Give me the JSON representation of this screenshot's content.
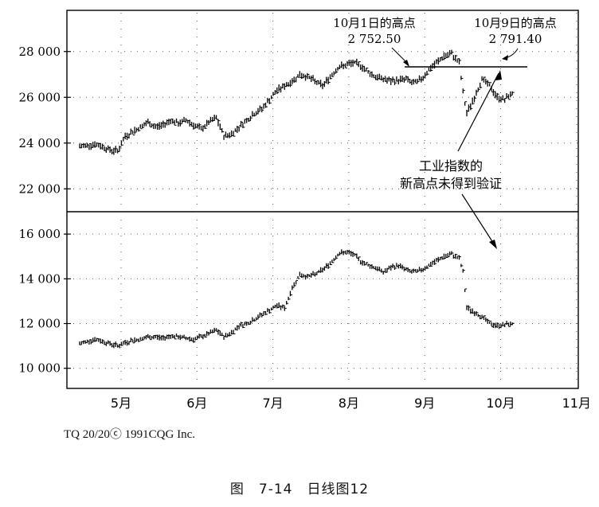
{
  "chart_data": {
    "type": "bar",
    "subtype": "ohlc-daily",
    "x_ticks": [
      "5月",
      "6月",
      "7月",
      "8月",
      "9月",
      "10月",
      "11月"
    ],
    "top_panel": {
      "y_ticks": [
        "28 000",
        "26 000",
        "24 000",
        "22 000"
      ],
      "ylim": [
        21000,
        29800
      ],
      "series": [
        {
          "x": 0.0,
          "y": 23850
        },
        {
          "x": 0.2,
          "y": 23900
        },
        {
          "x": 0.4,
          "y": 23950
        },
        {
          "x": 0.6,
          "y": 23850
        },
        {
          "x": 0.8,
          "y": 23700
        },
        {
          "x": 1.0,
          "y": 23650
        },
        {
          "x": 1.2,
          "y": 24300
        },
        {
          "x": 1.4,
          "y": 24500
        },
        {
          "x": 1.6,
          "y": 24700
        },
        {
          "x": 1.8,
          "y": 24900
        },
        {
          "x": 2.0,
          "y": 24700
        },
        {
          "x": 2.2,
          "y": 24800
        },
        {
          "x": 2.4,
          "y": 25000
        },
        {
          "x": 2.6,
          "y": 24850
        },
        {
          "x": 2.8,
          "y": 25000
        },
        {
          "x": 3.0,
          "y": 24800
        },
        {
          "x": 3.2,
          "y": 24600
        },
        {
          "x": 3.4,
          "y": 24900
        },
        {
          "x": 3.6,
          "y": 25100
        },
        {
          "x": 3.8,
          "y": 24300
        },
        {
          "x": 4.0,
          "y": 24400
        },
        {
          "x": 4.2,
          "y": 24700
        },
        {
          "x": 4.4,
          "y": 25000
        },
        {
          "x": 4.6,
          "y": 25300
        },
        {
          "x": 4.8,
          "y": 25500
        },
        {
          "x": 5.0,
          "y": 25900
        },
        {
          "x": 5.2,
          "y": 26300
        },
        {
          "x": 5.4,
          "y": 26500
        },
        {
          "x": 5.6,
          "y": 26700
        },
        {
          "x": 5.8,
          "y": 27000
        },
        {
          "x": 6.0,
          "y": 26900
        },
        {
          "x": 6.2,
          "y": 26700
        },
        {
          "x": 6.4,
          "y": 26500
        },
        {
          "x": 6.6,
          "y": 26900
        },
        {
          "x": 6.8,
          "y": 27300
        },
        {
          "x": 7.0,
          "y": 27400
        },
        {
          "x": 7.2,
          "y": 27500
        },
        {
          "x": 7.4,
          "y": 27400
        },
        {
          "x": 7.6,
          "y": 27100
        },
        {
          "x": 7.8,
          "y": 26900
        },
        {
          "x": 8.0,
          "y": 26800
        },
        {
          "x": 8.2,
          "y": 26700
        },
        {
          "x": 8.4,
          "y": 26750
        },
        {
          "x": 8.6,
          "y": 26800
        },
        {
          "x": 8.8,
          "y": 26600
        },
        {
          "x": 9.0,
          "y": 26800
        },
        {
          "x": 9.2,
          "y": 27200
        },
        {
          "x": 9.4,
          "y": 27500
        },
        {
          "x": 9.6,
          "y": 27800
        },
        {
          "x": 9.8,
          "y": 27900
        },
        {
          "x": 10.0,
          "y": 27500
        },
        {
          "x": 10.1,
          "y": 26200
        },
        {
          "x": 10.2,
          "y": 25300
        },
        {
          "x": 10.4,
          "y": 26000
        },
        {
          "x": 10.6,
          "y": 26800
        },
        {
          "x": 10.8,
          "y": 26500
        },
        {
          "x": 11.0,
          "y": 26000
        },
        {
          "x": 11.2,
          "y": 25900
        },
        {
          "x": 11.4,
          "y": 26200
        }
      ]
    },
    "bottom_panel": {
      "y_ticks": [
        "16 000",
        "14 000",
        "12 000",
        "10 000"
      ],
      "ylim": [
        9100,
        17000
      ],
      "series": [
        {
          "x": 0.0,
          "y": 11100
        },
        {
          "x": 0.2,
          "y": 11200
        },
        {
          "x": 0.4,
          "y": 11300
        },
        {
          "x": 0.6,
          "y": 11200
        },
        {
          "x": 0.8,
          "y": 11100
        },
        {
          "x": 1.0,
          "y": 11000
        },
        {
          "x": 1.2,
          "y": 11150
        },
        {
          "x": 1.4,
          "y": 11250
        },
        {
          "x": 1.6,
          "y": 11300
        },
        {
          "x": 1.8,
          "y": 11400
        },
        {
          "x": 2.0,
          "y": 11400
        },
        {
          "x": 2.2,
          "y": 11350
        },
        {
          "x": 2.4,
          "y": 11450
        },
        {
          "x": 2.6,
          "y": 11400
        },
        {
          "x": 2.8,
          "y": 11350
        },
        {
          "x": 3.0,
          "y": 11300
        },
        {
          "x": 3.2,
          "y": 11400
        },
        {
          "x": 3.4,
          "y": 11550
        },
        {
          "x": 3.6,
          "y": 11700
        },
        {
          "x": 3.8,
          "y": 11400
        },
        {
          "x": 4.0,
          "y": 11600
        },
        {
          "x": 4.2,
          "y": 11900
        },
        {
          "x": 4.4,
          "y": 12000
        },
        {
          "x": 4.6,
          "y": 12200
        },
        {
          "x": 4.8,
          "y": 12400
        },
        {
          "x": 5.0,
          "y": 12600
        },
        {
          "x": 5.2,
          "y": 12800
        },
        {
          "x": 5.4,
          "y": 12700
        },
        {
          "x": 5.6,
          "y": 13600
        },
        {
          "x": 5.8,
          "y": 14200
        },
        {
          "x": 6.0,
          "y": 14100
        },
        {
          "x": 6.2,
          "y": 14200
        },
        {
          "x": 6.4,
          "y": 14400
        },
        {
          "x": 6.6,
          "y": 14700
        },
        {
          "x": 6.8,
          "y": 15100
        },
        {
          "x": 7.0,
          "y": 15200
        },
        {
          "x": 7.2,
          "y": 15100
        },
        {
          "x": 7.4,
          "y": 14800
        },
        {
          "x": 7.6,
          "y": 14600
        },
        {
          "x": 7.8,
          "y": 14500
        },
        {
          "x": 8.0,
          "y": 14300
        },
        {
          "x": 8.2,
          "y": 14500
        },
        {
          "x": 8.4,
          "y": 14600
        },
        {
          "x": 8.6,
          "y": 14400
        },
        {
          "x": 8.8,
          "y": 14300
        },
        {
          "x": 9.0,
          "y": 14400
        },
        {
          "x": 9.2,
          "y": 14600
        },
        {
          "x": 9.4,
          "y": 14800
        },
        {
          "x": 9.6,
          "y": 15000
        },
        {
          "x": 9.8,
          "y": 15100
        },
        {
          "x": 10.0,
          "y": 14900
        },
        {
          "x": 10.1,
          "y": 14300
        },
        {
          "x": 10.2,
          "y": 12700
        },
        {
          "x": 10.4,
          "y": 12500
        },
        {
          "x": 10.6,
          "y": 12300
        },
        {
          "x": 10.8,
          "y": 12000
        },
        {
          "x": 11.0,
          "y": 11900
        },
        {
          "x": 11.2,
          "y": 11950
        },
        {
          "x": 11.4,
          "y": 12000
        }
      ]
    },
    "annotations": [
      {
        "line1": "10月1日的高点",
        "line2": "2 752.50"
      },
      {
        "line1": "10月9日的高点",
        "line2": "2 791.40"
      },
      {
        "line1": "工业指数的",
        "line2": "新高点未得到验证"
      }
    ],
    "grid": "dotted-vertical"
  },
  "credit": "TQ 20/20ⓒ 1991CQG Inc.",
  "caption": "图　7-14　日线图12"
}
